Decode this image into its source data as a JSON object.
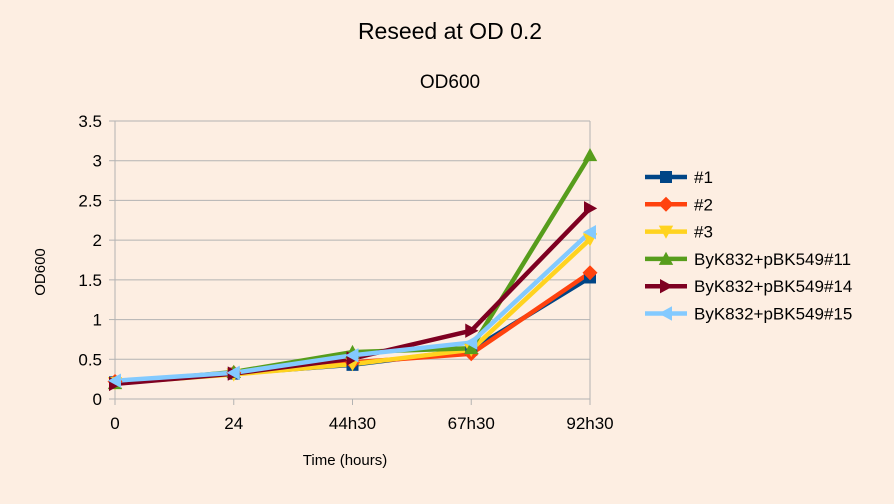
{
  "chart_data": {
    "type": "line",
    "title": "Reseed at OD 0.2",
    "subtitle": "OD600",
    "xlabel": "Time (hours)",
    "ylabel": "OD600",
    "categories": [
      "0",
      "24",
      "44h30",
      "67h30",
      "92h30"
    ],
    "ylim": [
      0,
      3.5
    ],
    "yticks": [
      "0",
      "0.5",
      "1",
      "1.5",
      "2",
      "2.5",
      "3",
      "3.5"
    ],
    "grid": true,
    "legend_position": "right",
    "series": [
      {
        "name": "#1",
        "values": [
          0.21,
          0.32,
          0.43,
          0.62,
          1.53
        ],
        "color": "#004586",
        "marker": "square"
      },
      {
        "name": "#2",
        "values": [
          0.22,
          0.33,
          0.46,
          0.57,
          1.59
        ],
        "color": "#ff420e",
        "marker": "diamond"
      },
      {
        "name": "#3",
        "values": [
          0.2,
          0.31,
          0.44,
          0.62,
          2.01
        ],
        "color": "#ffd320",
        "marker": "triangle-down"
      },
      {
        "name": "ByK832+pBK549#11",
        "values": [
          0.2,
          0.34,
          0.59,
          0.64,
          3.07
        ],
        "color": "#579d1c",
        "marker": "triangle-up"
      },
      {
        "name": "ByK832+pBK549#14",
        "values": [
          0.19,
          0.32,
          0.51,
          0.86,
          2.4
        ],
        "color": "#7e0021",
        "marker": "triangle-right"
      },
      {
        "name": "ByK832+pBK549#15",
        "values": [
          0.23,
          0.33,
          0.55,
          0.71,
          2.1
        ],
        "color": "#83caff",
        "marker": "triangle-left"
      }
    ]
  }
}
